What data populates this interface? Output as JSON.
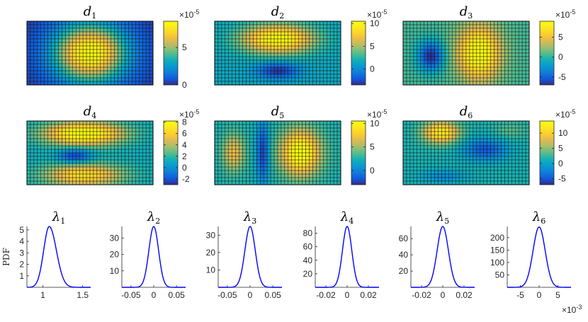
{
  "chart_data": [
    {
      "type": "heatmap",
      "symbol": "d",
      "subscript": "1",
      "colorbar_ticks": [
        {
          "value": 0,
          "label": "0"
        },
        {
          "value": 5,
          "label": "5"
        }
      ],
      "colorbar_limits": [
        0,
        8.5
      ],
      "colorbar_exponent": "×10",
      "colorbar_exponent_power": "-5",
      "grid_rows": 18,
      "grid_cols": 36,
      "field": [
        {
          "cx": 0.5,
          "cy": 0.5,
          "sx": 0.2,
          "sy": 0.32,
          "a": 8.3
        }
      ],
      "base": 0.3
    },
    {
      "type": "heatmap",
      "symbol": "d",
      "subscript": "2",
      "colorbar_ticks": [
        {
          "value": 0,
          "label": "0"
        },
        {
          "value": 5,
          "label": "5"
        },
        {
          "value": 10,
          "label": "10"
        }
      ],
      "colorbar_limits": [
        -3.5,
        10.5
      ],
      "colorbar_exponent": "×10",
      "colorbar_exponent_power": "-5",
      "grid_rows": 18,
      "grid_cols": 36,
      "field": [
        {
          "cx": 0.5,
          "cy": 0.28,
          "sx": 0.2,
          "sy": 0.16,
          "a": 9
        },
        {
          "cx": 0.5,
          "cy": 0.78,
          "sx": 0.12,
          "sy": 0.09,
          "a": -4.8
        }
      ],
      "base": 1.5
    },
    {
      "type": "heatmap",
      "symbol": "d",
      "subscript": "3",
      "colorbar_ticks": [
        {
          "value": -5,
          "label": "-5"
        },
        {
          "value": 0,
          "label": "0"
        },
        {
          "value": 5,
          "label": "5"
        }
      ],
      "colorbar_limits": [
        -7,
        9
      ],
      "colorbar_exponent": "×10",
      "colorbar_exponent_power": "-5",
      "grid_rows": 18,
      "grid_cols": 36,
      "field": [
        {
          "cx": 0.6,
          "cy": 0.5,
          "sx": 0.12,
          "sy": 0.3,
          "a": 9
        },
        {
          "cx": 0.22,
          "cy": 0.55,
          "sx": 0.07,
          "sy": 0.16,
          "a": -7.5
        }
      ],
      "base": 0.5
    },
    {
      "type": "heatmap",
      "symbol": "d",
      "subscript": "4",
      "colorbar_ticks": [
        {
          "value": -2,
          "label": "-2"
        },
        {
          "value": 0,
          "label": "0"
        },
        {
          "value": 2,
          "label": "2"
        },
        {
          "value": 4,
          "label": "4"
        },
        {
          "value": 6,
          "label": "6"
        },
        {
          "value": 8,
          "label": "8"
        }
      ],
      "colorbar_limits": [
        -3,
        8.2
      ],
      "colorbar_exponent": "×10",
      "colorbar_exponent_power": "-5",
      "grid_rows": 18,
      "grid_cols": 36,
      "field": [
        {
          "cx": 0.45,
          "cy": 0.2,
          "sx": 0.22,
          "sy": 0.13,
          "a": 7.5
        },
        {
          "cx": 0.45,
          "cy": 0.85,
          "sx": 0.22,
          "sy": 0.13,
          "a": 5.5
        },
        {
          "cx": 0.38,
          "cy": 0.55,
          "sx": 0.09,
          "sy": 0.08,
          "a": -4
        }
      ],
      "base": 1.2
    },
    {
      "type": "heatmap",
      "symbol": "d",
      "subscript": "5",
      "colorbar_ticks": [
        {
          "value": 0,
          "label": "0"
        },
        {
          "value": 5,
          "label": "5"
        },
        {
          "value": 10,
          "label": "10"
        }
      ],
      "colorbar_limits": [
        -3,
        10.5
      ],
      "colorbar_exponent": "×10",
      "colorbar_exponent_power": "-5",
      "grid_rows": 18,
      "grid_cols": 36,
      "field": [
        {
          "cx": 0.68,
          "cy": 0.5,
          "sx": 0.11,
          "sy": 0.25,
          "a": 8.5
        },
        {
          "cx": 0.15,
          "cy": 0.5,
          "sx": 0.06,
          "sy": 0.2,
          "a": 4.5
        },
        {
          "cx": 0.38,
          "cy": 0.5,
          "sx": 0.035,
          "sy": 0.35,
          "a": -5
        }
      ],
      "base": 2.5
    },
    {
      "type": "heatmap",
      "symbol": "d",
      "subscript": "6",
      "colorbar_ticks": [
        {
          "value": -5,
          "label": "-5"
        },
        {
          "value": 0,
          "label": "0"
        },
        {
          "value": 5,
          "label": "5"
        },
        {
          "value": 10,
          "label": "10"
        }
      ],
      "colorbar_limits": [
        -7,
        14
      ],
      "colorbar_exponent": "×10",
      "colorbar_exponent_power": "-5",
      "grid_rows": 18,
      "grid_cols": 36,
      "field": [
        {
          "cx": 0.3,
          "cy": 0.18,
          "sx": 0.1,
          "sy": 0.12,
          "a": 11
        },
        {
          "cx": 0.65,
          "cy": 0.45,
          "sx": 0.12,
          "sy": 0.12,
          "a": -6.5
        },
        {
          "cx": 0.32,
          "cy": 0.87,
          "sx": 0.12,
          "sy": 0.07,
          "a": -3.5
        },
        {
          "cx": 0.85,
          "cy": 0.15,
          "sx": 0.1,
          "sy": 0.1,
          "a": 2
        }
      ],
      "base": 1.5
    },
    {
      "type": "line",
      "symbol": "λ",
      "subscript": "1",
      "ylabel": "PDF",
      "xlim": [
        0.8,
        1.6
      ],
      "ylim": [
        0,
        5.3
      ],
      "xticks": [
        {
          "value": 1,
          "label": "1"
        },
        {
          "value": 1.5,
          "label": "1.5"
        }
      ],
      "yticks": [
        {
          "value": 1,
          "label": "1"
        },
        {
          "value": 2,
          "label": "2"
        },
        {
          "value": 3,
          "label": "3"
        },
        {
          "value": 4,
          "label": "4"
        },
        {
          "value": 5,
          "label": "5"
        }
      ],
      "curve": {
        "mu": 1.08,
        "sigma_left": 0.07,
        "sigma_right": 0.09,
        "peak": 5.3
      }
    },
    {
      "type": "line",
      "symbol": "λ",
      "subscript": "2",
      "xlim": [
        -0.07,
        0.07
      ],
      "ylim": [
        0,
        37
      ],
      "xticks": [
        {
          "value": -0.05,
          "label": "-0.05"
        },
        {
          "value": 0,
          "label": "0"
        },
        {
          "value": 0.05,
          "label": "0.05"
        }
      ],
      "yticks": [
        {
          "value": 10,
          "label": "10"
        },
        {
          "value": 20,
          "label": "20"
        },
        {
          "value": 30,
          "label": "30"
        }
      ],
      "curve": {
        "mu": 0.0,
        "sigma_left": 0.0107,
        "sigma_right": 0.0107,
        "peak": 37
      }
    },
    {
      "type": "line",
      "symbol": "λ",
      "subscript": "3",
      "xlim": [
        -0.07,
        0.07
      ],
      "ylim": [
        0,
        35
      ],
      "xticks": [
        {
          "value": -0.05,
          "label": "-0.05"
        },
        {
          "value": 0,
          "label": "0"
        },
        {
          "value": 0.05,
          "label": "0.05"
        }
      ],
      "yticks": [
        {
          "value": 10,
          "label": "10"
        },
        {
          "value": 20,
          "label": "20"
        },
        {
          "value": 30,
          "label": "30"
        }
      ],
      "curve": {
        "mu": 0.0,
        "sigma_left": 0.0114,
        "sigma_right": 0.0114,
        "peak": 35
      }
    },
    {
      "type": "line",
      "symbol": "λ",
      "subscript": "4",
      "xlim": [
        -0.03,
        0.03
      ],
      "ylim": [
        0,
        90
      ],
      "xticks": [
        {
          "value": -0.02,
          "label": "-0.02"
        },
        {
          "value": 0,
          "label": "0"
        },
        {
          "value": 0.02,
          "label": "0.02"
        }
      ],
      "yticks": [
        {
          "value": 20,
          "label": "20"
        },
        {
          "value": 40,
          "label": "40"
        },
        {
          "value": 60,
          "label": "60"
        },
        {
          "value": 80,
          "label": "80"
        }
      ],
      "curve": {
        "mu": 0.0,
        "sigma_left": 0.0044,
        "sigma_right": 0.0044,
        "peak": 90
      }
    },
    {
      "type": "line",
      "symbol": "λ",
      "subscript": "5",
      "xlim": [
        -0.03,
        0.03
      ],
      "ylim": [
        0,
        75
      ],
      "xticks": [
        {
          "value": -0.02,
          "label": "-0.02"
        },
        {
          "value": 0,
          "label": "0"
        },
        {
          "value": 0.02,
          "label": "0.02"
        }
      ],
      "yticks": [
        {
          "value": 20,
          "label": "20"
        },
        {
          "value": 40,
          "label": "40"
        },
        {
          "value": 60,
          "label": "60"
        }
      ],
      "curve": {
        "mu": 0.0,
        "sigma_left": 0.0053,
        "sigma_right": 0.0053,
        "peak": 75
      }
    },
    {
      "type": "line",
      "symbol": "λ",
      "subscript": "6",
      "xlim": [
        -8.5,
        8.5
      ],
      "ylim": [
        0,
        245
      ],
      "xticks": [
        {
          "value": -5,
          "label": "-5"
        },
        {
          "value": 0,
          "label": "0"
        },
        {
          "value": 5,
          "label": "5"
        }
      ],
      "yticks": [
        {
          "value": 50,
          "label": "50"
        },
        {
          "value": 100,
          "label": "100"
        },
        {
          "value": 150,
          "label": "150"
        },
        {
          "value": 200,
          "label": "200"
        }
      ],
      "xexponent": "×10",
      "xexponent_power": "-3",
      "curve": {
        "mu": 0.0,
        "sigma_left": 1.62,
        "sigma_right": 1.62,
        "peak": 243
      }
    }
  ]
}
